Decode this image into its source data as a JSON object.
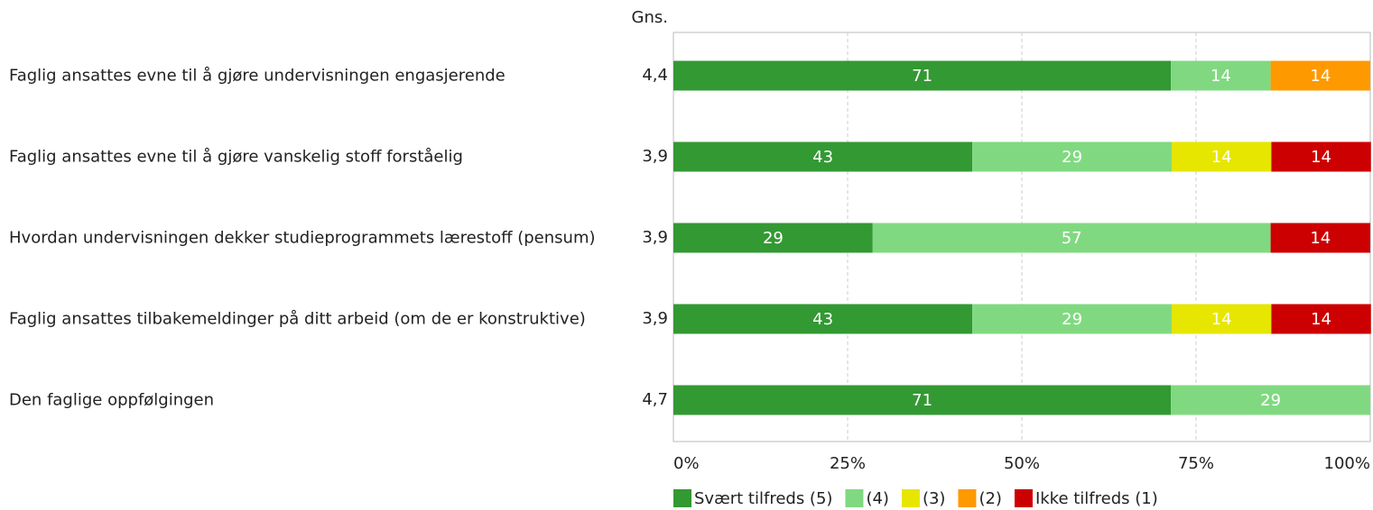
{
  "chart_data": {
    "type": "stacked-bar-horizontal",
    "categories": [
      "Faglig ansattes evne til å gjøre undervisningen engasjerende",
      "Faglig ansattes evne til å gjøre vanskelig stoff forståelig",
      "Hvordan undervisningen dekker studieprogrammets lærestoff (pensum)",
      "Faglig ansattes tilbakemeldinger på ditt arbeid (om de er konstruktive)",
      "Den faglige oppfølgingen"
    ],
    "averages_header": "Gns.",
    "averages": [
      "4,4",
      "3,9",
      "3,9",
      "3,9",
      "4,7"
    ],
    "series": [
      {
        "name": "Svært tilfreds (5)",
        "color": "#339933",
        "values": [
          71.4,
          42.9,
          28.6,
          42.9,
          71.4
        ],
        "value_labels": [
          "71",
          "43",
          "29",
          "43",
          "71"
        ]
      },
      {
        "name": "(4)",
        "color": "#80d980",
        "values": [
          14.3,
          28.6,
          57.1,
          28.6,
          28.6
        ],
        "value_labels": [
          "14",
          "29",
          "57",
          "29",
          "29"
        ]
      },
      {
        "name": "(3)",
        "color": "#e6e600",
        "values": [
          null,
          14.3,
          null,
          14.3,
          null
        ],
        "value_labels": [
          null,
          "14",
          null,
          "14",
          null
        ]
      },
      {
        "name": "(2)",
        "color": "#ff9900",
        "values": [
          14.3,
          null,
          null,
          null,
          null
        ],
        "value_labels": [
          "14",
          null,
          null,
          null,
          null
        ]
      },
      {
        "name": "Ikke tilfreds (1)",
        "color": "#cc0000",
        "values": [
          null,
          14.3,
          14.3,
          14.3,
          null
        ],
        "value_labels": [
          null,
          "14",
          "14",
          "14",
          null
        ]
      }
    ],
    "xlim": [
      0,
      100
    ],
    "xticks": [
      {
        "value": 0,
        "label": "0%"
      },
      {
        "value": 25,
        "label": "25%"
      },
      {
        "value": 50,
        "label": "50%"
      },
      {
        "value": 75,
        "label": "75%"
      },
      {
        "value": 100,
        "label": "100%"
      }
    ],
    "grid": true
  }
}
